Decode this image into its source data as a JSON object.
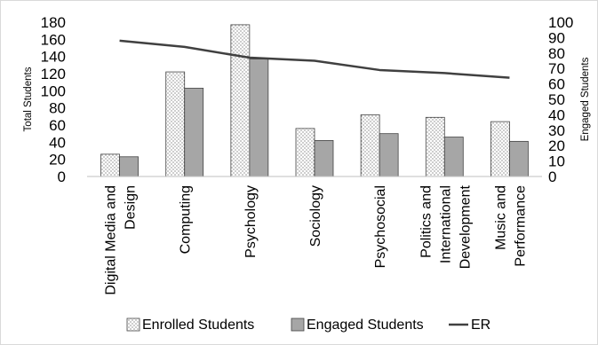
{
  "chart_data": {
    "type": "bar",
    "categories": [
      [
        "Digital Media and",
        "Design"
      ],
      [
        "Computing"
      ],
      [
        "Psychology"
      ],
      [
        "Sociology"
      ],
      [
        "Psychosocial"
      ],
      [
        "Politics and",
        "International",
        "Development"
      ],
      [
        "Music and",
        "Performance"
      ]
    ],
    "series": [
      {
        "name": "Enrolled Students",
        "values": [
          26,
          122,
          177,
          56,
          72,
          69,
          64
        ],
        "axis": "left",
        "style": "dotted-fill"
      },
      {
        "name": "Engaged Students",
        "values": [
          23,
          103,
          137,
          42,
          50,
          46,
          41
        ],
        "axis": "left",
        "style": "grey-fill"
      },
      {
        "name": "ER",
        "values": [
          88,
          84,
          77,
          75,
          69,
          67,
          64
        ],
        "axis": "right",
        "type": "line"
      }
    ],
    "left_axis": {
      "label": "Total Students",
      "ylim": [
        0,
        180
      ],
      "ticks": [
        "0",
        "20",
        "40",
        "60",
        "80",
        "100",
        "120",
        "140",
        "160",
        "180"
      ]
    },
    "right_axis": {
      "label": "Engaged Students",
      "ylim": [
        0,
        100
      ],
      "ticks": [
        "0",
        "10",
        "20",
        "30",
        "40",
        "50",
        "60",
        "70",
        "80",
        "90",
        "100"
      ]
    },
    "legend": {
      "position": "bottom",
      "items": [
        "Enrolled Students",
        "Engaged Students",
        "ER"
      ]
    },
    "grid": false,
    "colors": {
      "enrolled_fill": "#ffffff",
      "enrolled_dots": "#555555",
      "engaged_fill": "#a6a6a6",
      "line": "#404040",
      "axis": "#bfbfbf"
    }
  }
}
